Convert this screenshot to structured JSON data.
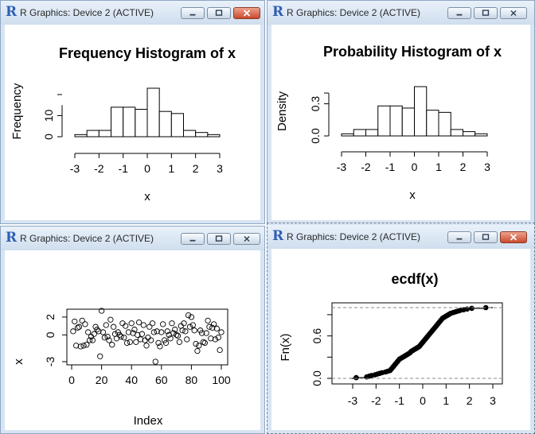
{
  "windows": [
    {
      "title": "R Graphics: Device 2 (ACTIVE)"
    },
    {
      "title": "R Graphics: Device 2 (ACTIVE)"
    },
    {
      "title": "R Graphics: Device 2 (ACTIVE)"
    },
    {
      "title": "R Graphics: Device 2 (ACTIVE)"
    }
  ],
  "icons": {
    "app": "r-logo-icon",
    "minimize": "minimize-icon",
    "maximize": "maximize-icon",
    "close": "close-icon"
  },
  "colors": {
    "titlebar": "#d7e4f2",
    "close_button": "#c94a2c"
  },
  "chart_data": [
    {
      "type": "bar",
      "title": "Frequency Histogram of x",
      "xlabel": "x",
      "ylabel": "Frequency",
      "bin_edges": [
        -3,
        -2.5,
        -2,
        -1.5,
        -1,
        -0.5,
        0,
        0.5,
        1,
        1.5,
        2,
        2.5,
        3
      ],
      "values": [
        1,
        3,
        3,
        14,
        14,
        13,
        23,
        12,
        11,
        3,
        2,
        1
      ],
      "xticks": [
        "-3",
        "-2",
        "-1",
        "0",
        "1",
        "2",
        "3"
      ],
      "yticks": [
        "0",
        "10"
      ],
      "ylim": [
        0,
        23
      ]
    },
    {
      "type": "bar",
      "title": "Probability Histogram of x",
      "xlabel": "x",
      "ylabel": "Density",
      "bin_edges": [
        -3,
        -2.5,
        -2,
        -1.5,
        -1,
        -0.5,
        0,
        0.5,
        1,
        1.5,
        2,
        2.5,
        3
      ],
      "values": [
        0.02,
        0.06,
        0.06,
        0.28,
        0.28,
        0.26,
        0.46,
        0.24,
        0.22,
        0.06,
        0.04,
        0.02
      ],
      "xticks": [
        "-3",
        "-2",
        "-1",
        "0",
        "1",
        "2",
        "3"
      ],
      "yticks": [
        "0.0",
        "0.3"
      ],
      "ylim": [
        0,
        0.46
      ]
    },
    {
      "type": "scatter",
      "title": "",
      "xlabel": "Index",
      "ylabel": "x",
      "x": [
        1,
        2,
        3,
        4,
        5,
        6,
        7,
        8,
        9,
        10,
        11,
        12,
        13,
        14,
        15,
        16,
        17,
        18,
        19,
        20,
        21,
        22,
        23,
        24,
        25,
        26,
        27,
        28,
        29,
        30,
        31,
        32,
        33,
        34,
        35,
        36,
        37,
        38,
        39,
        40,
        41,
        42,
        43,
        44,
        45,
        46,
        47,
        48,
        49,
        50,
        51,
        52,
        53,
        54,
        55,
        56,
        57,
        58,
        59,
        60,
        61,
        62,
        63,
        64,
        65,
        66,
        67,
        68,
        69,
        70,
        71,
        72,
        73,
        74,
        75,
        76,
        77,
        78,
        79,
        80,
        81,
        82,
        83,
        84,
        85,
        86,
        87,
        88,
        89,
        90,
        91,
        92,
        93,
        94,
        95,
        96,
        97,
        98,
        99,
        100
      ],
      "y": [
        0.4,
        1.5,
        -1.2,
        0.8,
        0.9,
        -1.3,
        1.6,
        -1.2,
        1.2,
        -1.1,
        0.3,
        -0.6,
        -0.2,
        -0.6,
        0.1,
        0.9,
        0.6,
        0.4,
        -2.4,
        2.7,
        0.3,
        -0.3,
        1.1,
        -0.2,
        -0.6,
        1.7,
        -1.1,
        0.9,
        0.1,
        -0.4,
        0.3,
        0.0,
        -0.2,
        1.3,
        -0.3,
        1.0,
        -0.9,
        0.3,
        -0.8,
        1.3,
        0.2,
        0.6,
        -0.8,
        0.0,
        1.4,
        -0.5,
        0.1,
        1.1,
        -0.6,
        -1.2,
        -0.3,
        0.9,
        -0.6,
        1.3,
        0.3,
        -3.0,
        0.4,
        -0.9,
        -1.3,
        0.3,
        1.2,
        -0.6,
        -0.9,
        0.4,
        0.0,
        -0.4,
        1.3,
        0.2,
        0.6,
        0.0,
        -0.1,
        -0.8,
        1.0,
        0.5,
        1.3,
        0.4,
        -0.5,
        2.2,
        0.9,
        2.0,
        1.1,
        0.5,
        -1.0,
        -1.8,
        -1.2,
        0.5,
        0.2,
        -0.8,
        -0.9,
        0.2,
        1.6,
        0.9,
        -0.4,
        0.8,
        1.2,
        -0.5,
        0.7,
        -0.3,
        -1.7,
        0.3
      ],
      "xticks": [
        "0",
        "20",
        "40",
        "60",
        "80",
        "100"
      ],
      "yticks": [
        "-3",
        "0",
        "2"
      ],
      "xlim": [
        0,
        100
      ],
      "ylim": [
        -3,
        2.7
      ]
    },
    {
      "type": "scatter",
      "title": "ecdf(x)",
      "xlabel": "",
      "ylabel": "Fn(x)",
      "x": [
        -2.85,
        -2.4,
        -2.3,
        -2.2,
        -2.05,
        -1.95,
        -1.85,
        -1.75,
        -1.6,
        -1.5,
        -1.4,
        -1.35,
        -1.3,
        -1.25,
        -1.2,
        -1.15,
        -1.1,
        -1.05,
        -1.0,
        -0.95,
        -0.9,
        -0.85,
        -0.8,
        -0.75,
        -0.7,
        -0.65,
        -0.6,
        -0.55,
        -0.5,
        -0.45,
        -0.4,
        -0.35,
        -0.3,
        -0.25,
        -0.2,
        -0.15,
        -0.1,
        -0.05,
        0.0,
        0.05,
        0.1,
        0.15,
        0.2,
        0.25,
        0.3,
        0.35,
        0.4,
        0.45,
        0.5,
        0.55,
        0.6,
        0.65,
        0.7,
        0.75,
        0.8,
        0.85,
        0.9,
        0.95,
        1.0,
        1.05,
        1.1,
        1.15,
        1.2,
        1.3,
        1.4,
        1.5,
        1.6,
        1.75,
        1.9,
        2.1,
        2.7
      ],
      "y": [
        0.01,
        0.02,
        0.03,
        0.04,
        0.05,
        0.06,
        0.07,
        0.08,
        0.09,
        0.1,
        0.11,
        0.13,
        0.15,
        0.17,
        0.19,
        0.21,
        0.23,
        0.25,
        0.27,
        0.28,
        0.29,
        0.3,
        0.31,
        0.32,
        0.33,
        0.34,
        0.35,
        0.36,
        0.38,
        0.39,
        0.4,
        0.41,
        0.42,
        0.43,
        0.44,
        0.45,
        0.47,
        0.49,
        0.51,
        0.53,
        0.55,
        0.57,
        0.59,
        0.61,
        0.63,
        0.65,
        0.67,
        0.69,
        0.71,
        0.73,
        0.75,
        0.77,
        0.79,
        0.81,
        0.83,
        0.85,
        0.86,
        0.87,
        0.88,
        0.89,
        0.9,
        0.91,
        0.92,
        0.93,
        0.94,
        0.95,
        0.96,
        0.97,
        0.98,
        0.99,
        1.0
      ],
      "xticks": [
        "-3",
        "-2",
        "-1",
        "0",
        "1",
        "2",
        "3"
      ],
      "yticks": [
        "0.0",
        "0.6"
      ],
      "xlim": [
        -3,
        3
      ],
      "ylim": [
        0,
        1
      ]
    }
  ]
}
